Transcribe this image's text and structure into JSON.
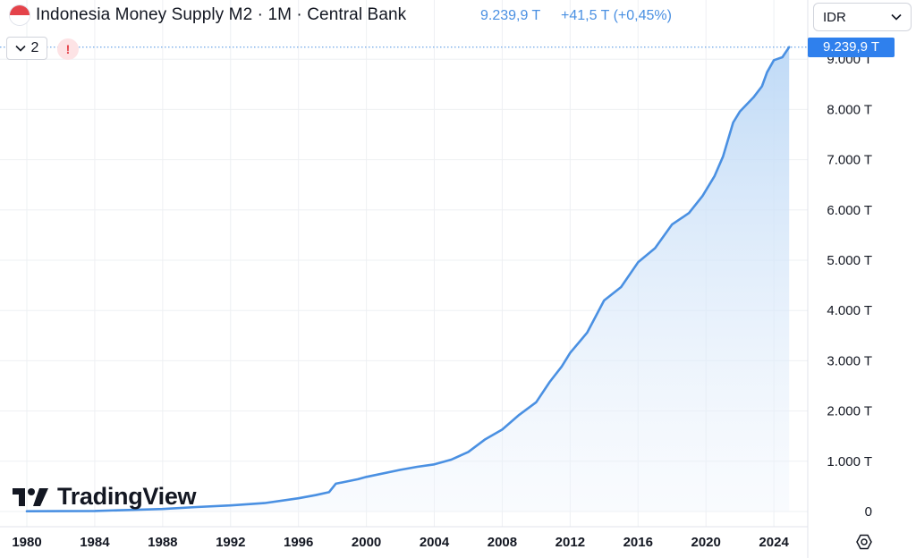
{
  "header": {
    "title": "Indonesia Money Supply M2 · 1M · Central Bank",
    "last_value": "9.239,9 T",
    "change": "+41,5 T (+0,45%)",
    "collapse_count": "2",
    "alert_glyph": "!"
  },
  "currency_selector": {
    "value": "IDR"
  },
  "price_tag": "9.239,9 T",
  "logo": {
    "text": "TradingView"
  },
  "icons": {
    "flag": "indonesia-flag-icon",
    "chevron": "chevron-down-icon",
    "alert": "alert-icon",
    "settings": "settings-icon"
  },
  "colors": {
    "line": "#4a90e2",
    "area_top": "#bcd8f6",
    "price_pill": "#2f80ed",
    "grid": "#eef0f3"
  },
  "chart_data": {
    "type": "area",
    "title": "Indonesia Money Supply M2 · 1M · Central Bank",
    "xlabel": "",
    "ylabel": "",
    "unit": "T IDR",
    "xlim": [
      1980,
      2025
    ],
    "ylim": [
      0,
      9300
    ],
    "x_ticks": [
      "1980",
      "1984",
      "1988",
      "1992",
      "1996",
      "2000",
      "2004",
      "2008",
      "2012",
      "2016",
      "2020",
      "2024"
    ],
    "y_ticks": [
      "0",
      "1.000 T",
      "2.000 T",
      "3.000 T",
      "4.000 T",
      "5.000 T",
      "6.000 T",
      "7.000 T",
      "8.000 T",
      "9.000 T"
    ],
    "y_tick_values": [
      0,
      1000,
      2000,
      3000,
      4000,
      5000,
      6000,
      7000,
      8000,
      9000
    ],
    "grid": true,
    "series": [
      {
        "name": "",
        "x": [
          1980,
          1984,
          1988,
          1990,
          1992,
          1994,
          1996,
          1997,
          1997.8,
          1998.2,
          1998.7,
          1999.5,
          2000,
          2002,
          2003,
          2004,
          2005,
          2006,
          2007,
          2008,
          2009,
          2010,
          2010.8,
          2011.5,
          2012,
          2013,
          2014,
          2015,
          2016,
          2017,
          2018,
          2019,
          2019.8,
          2020.5,
          2021,
          2021.6,
          2022,
          2022.8,
          2023.3,
          2023.6,
          2024,
          2024.5,
          2024.9
        ],
        "y": [
          5,
          10,
          50,
          90,
          120,
          170,
          260,
          330,
          380,
          560,
          580,
          650,
          680,
          840,
          880,
          950,
          1020,
          1200,
          1420,
          1650,
          1900,
          2200,
          2550,
          2920,
          3120,
          3600,
          4150,
          4520,
          4900,
          5300,
          5650,
          6000,
          6220,
          6730,
          7000,
          7800,
          7900,
          8300,
          8400,
          8800,
          8920,
          9100,
          9240
        ]
      }
    ],
    "last_value": 9239.9,
    "last_change": 41.5,
    "last_change_pct": 0.45
  }
}
